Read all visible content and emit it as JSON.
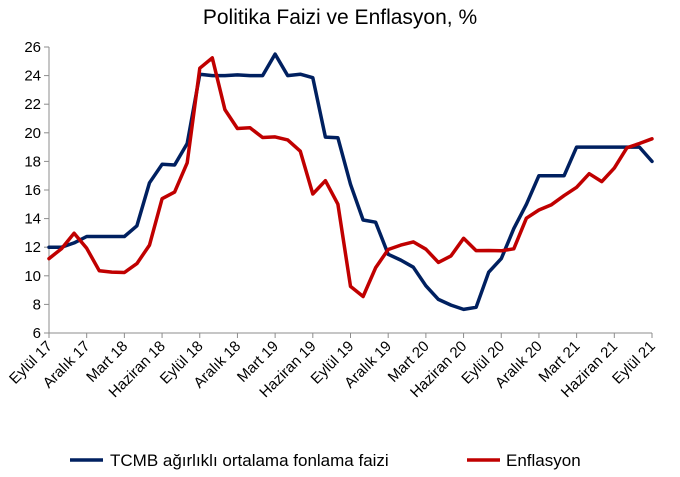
{
  "chart_data": {
    "type": "line",
    "title": "Politika Faizi ve Enflasyon, %",
    "xlabel": "",
    "ylabel": "",
    "ylim": [
      6,
      26
    ],
    "yticks": [
      6,
      8,
      10,
      12,
      14,
      16,
      18,
      20,
      22,
      24,
      26
    ],
    "grid": false,
    "legend_position": "bottom",
    "x": [
      "2017-09",
      "2017-10",
      "2017-11",
      "2017-12",
      "2018-01",
      "2018-02",
      "2018-03",
      "2018-04",
      "2018-05",
      "2018-06",
      "2018-07",
      "2018-08",
      "2018-09",
      "2018-10",
      "2018-11",
      "2018-12",
      "2019-01",
      "2019-02",
      "2019-03",
      "2019-04",
      "2019-05",
      "2019-06",
      "2019-07",
      "2019-08",
      "2019-09",
      "2019-10",
      "2019-11",
      "2019-12",
      "2020-01",
      "2020-02",
      "2020-03",
      "2020-04",
      "2020-05",
      "2020-06",
      "2020-07",
      "2020-08",
      "2020-09",
      "2020-10",
      "2020-11",
      "2020-12",
      "2021-01",
      "2021-02",
      "2021-03",
      "2021-04",
      "2021-05",
      "2021-06",
      "2021-07",
      "2021-08",
      "2021-09"
    ],
    "xtick_labels": [
      "Eylül 17",
      "Aralık 17",
      "Mart 18",
      "Haziran 18",
      "Eylül 18",
      "Aralık 18",
      "Mart 19",
      "Haziran 19",
      "Eylül 19",
      "Aralık 19",
      "Mart 20",
      "Haziran 20",
      "Eylül 20",
      "Aralık 20",
      "Mart 21",
      "Haziran 21",
      "Eylül 21"
    ],
    "series": [
      {
        "name": "TCMB ağırlıklı ortalama fonlama faizi",
        "color": "#002060",
        "values": [
          12.0,
          12.0,
          12.3,
          12.75,
          12.75,
          12.75,
          12.75,
          13.5,
          16.5,
          17.8,
          17.75,
          19.25,
          24.1,
          24.0,
          24.0,
          24.05,
          24.0,
          24.0,
          25.5,
          24.0,
          24.1,
          23.85,
          19.7,
          19.65,
          16.4,
          13.9,
          13.75,
          11.5,
          11.1,
          10.6,
          9.3,
          8.35,
          7.95,
          7.65,
          7.8,
          10.25,
          11.2,
          13.3,
          15.0,
          17.0,
          17.0,
          17.0,
          19.0,
          19.0,
          19.0,
          19.0,
          19.0,
          19.0,
          18.0
        ]
      },
      {
        "name": "Enflasyon",
        "color": "#c00000",
        "values": [
          11.2,
          11.9,
          12.98,
          11.92,
          10.35,
          10.26,
          10.23,
          10.85,
          12.15,
          15.39,
          15.85,
          17.9,
          24.52,
          25.24,
          21.62,
          20.3,
          20.35,
          19.67,
          19.71,
          19.5,
          18.71,
          15.72,
          16.65,
          15.01,
          9.26,
          8.55,
          10.56,
          11.84,
          12.15,
          12.37,
          11.86,
          10.94,
          11.39,
          12.62,
          11.76,
          11.77,
          11.75,
          11.89,
          14.03,
          14.6,
          14.97,
          15.61,
          16.19,
          17.14,
          16.59,
          17.53,
          18.95,
          19.25,
          19.58
        ]
      }
    ]
  }
}
